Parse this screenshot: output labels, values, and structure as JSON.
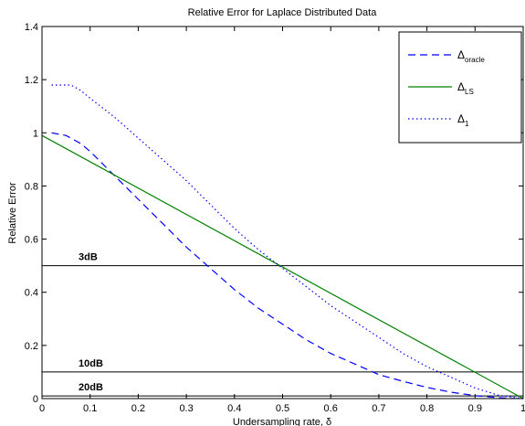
{
  "chart_data": {
    "type": "line",
    "title": "Relative Error for Laplace Distributed Data",
    "xlabel": "Undersampling rate, δ",
    "ylabel": "Relative Error",
    "xlim": [
      0,
      1
    ],
    "ylim": [
      0,
      1.4
    ],
    "xticks": [
      0,
      0.1,
      0.2,
      0.3,
      0.4,
      0.5,
      0.6,
      0.7,
      0.8,
      0.9,
      1
    ],
    "xtick_labels": [
      "0",
      "0.1",
      "0.2",
      "0.3",
      "0.4",
      "0.5",
      "0.6",
      "0.7",
      "0.8",
      "0.9",
      "1"
    ],
    "yticks": [
      0,
      0.2,
      0.4,
      0.6,
      0.8,
      1,
      1.2,
      1.4
    ],
    "ytick_labels": [
      "0",
      "0.2",
      "0.4",
      "0.6",
      "0.8",
      "1",
      "1.2",
      "1.4"
    ],
    "grid": false,
    "legend_position": "top-right",
    "series": [
      {
        "name": "oracle",
        "legend_main": "Δ",
        "legend_sub": "oracle",
        "style": "dashed",
        "color": "#0000ff",
        "x": [
          0.02,
          0.05,
          0.08,
          0.1,
          0.15,
          0.2,
          0.25,
          0.3,
          0.35,
          0.4,
          0.45,
          0.5,
          0.55,
          0.6,
          0.65,
          0.7,
          0.75,
          0.8,
          0.85,
          0.9,
          0.95,
          0.98,
          1.0
        ],
        "y": [
          1.0,
          0.99,
          0.96,
          0.93,
          0.84,
          0.75,
          0.66,
          0.57,
          0.49,
          0.41,
          0.34,
          0.28,
          0.22,
          0.17,
          0.13,
          0.09,
          0.065,
          0.042,
          0.024,
          0.011,
          0.003,
          0.0005,
          0.0
        ]
      },
      {
        "name": "LS",
        "legend_main": "Δ",
        "legend_sub": "LS",
        "style": "solid",
        "color": "#008000",
        "x": [
          0.0,
          1.0
        ],
        "y": [
          0.99,
          0.0
        ]
      },
      {
        "name": "1",
        "legend_main": "Δ",
        "legend_sub": "1",
        "style": "dotted",
        "color": "#0000ff",
        "x": [
          0.02,
          0.04,
          0.06,
          0.08,
          0.1,
          0.15,
          0.2,
          0.25,
          0.3,
          0.35,
          0.4,
          0.45,
          0.5,
          0.55,
          0.6,
          0.65,
          0.7,
          0.75,
          0.8,
          0.85,
          0.9,
          0.95,
          1.0
        ],
        "y": [
          1.18,
          1.18,
          1.18,
          1.16,
          1.13,
          1.06,
          0.98,
          0.9,
          0.82,
          0.73,
          0.64,
          0.56,
          0.49,
          0.42,
          0.35,
          0.29,
          0.23,
          0.17,
          0.12,
          0.08,
          0.04,
          0.012,
          0.0
        ]
      }
    ],
    "reference_lines": [
      {
        "label": "3dB",
        "y": 0.5
      },
      {
        "label": "10dB",
        "y": 0.1
      },
      {
        "label": "20dB",
        "y": 0.01
      }
    ]
  }
}
